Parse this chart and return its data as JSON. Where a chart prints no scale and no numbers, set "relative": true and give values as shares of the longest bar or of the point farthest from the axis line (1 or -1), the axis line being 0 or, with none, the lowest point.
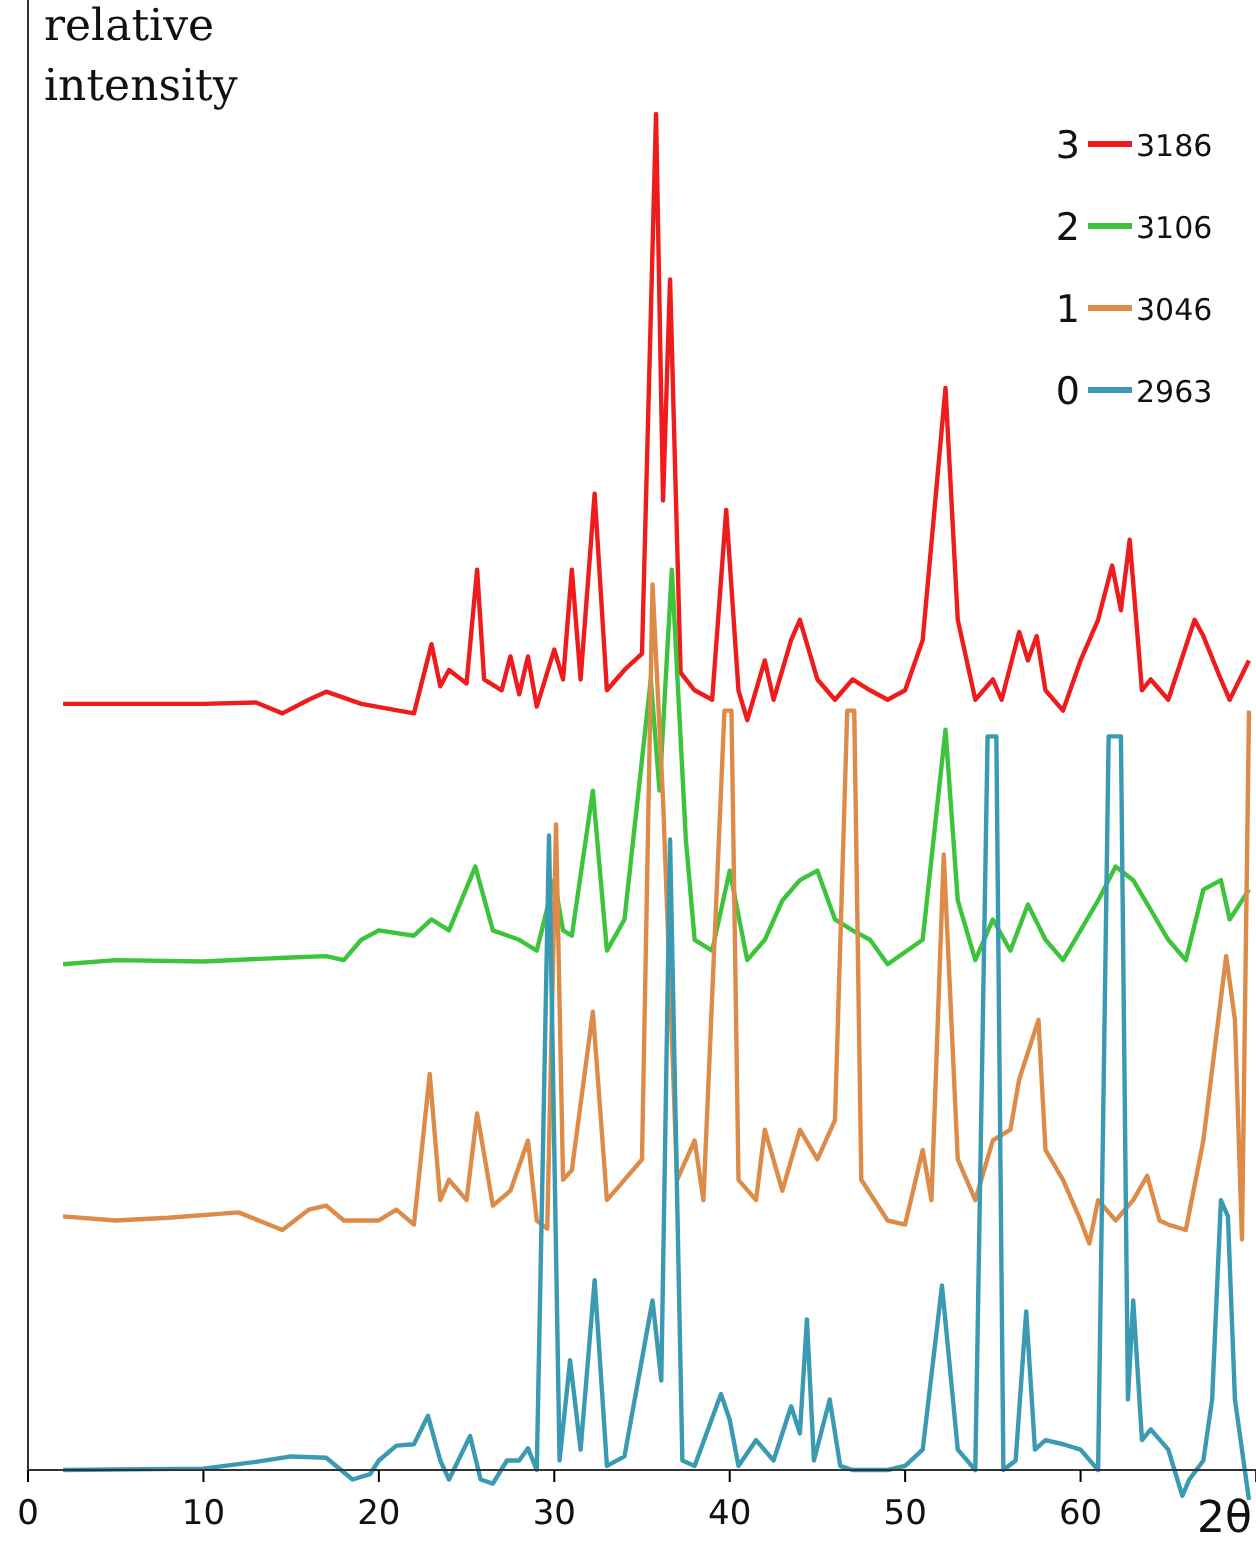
{
  "chart_data": {
    "type": "line",
    "relative": true,
    "ylabel": "relative intensity",
    "xlabel": "2θ",
    "xlim": [
      0,
      70
    ],
    "xticks": [
      0,
      10,
      20,
      30,
      40,
      50,
      60
    ],
    "legend": "top right",
    "annotations": [
      "3",
      "2",
      "1",
      "0"
    ],
    "marker": "none",
    "line_style": "solid",
    "series": [
      {
        "name": "3186",
        "color": "#ee1c1c",
        "x": [
          2,
          10,
          13,
          14.5,
          16,
          17,
          19,
          22,
          23,
          23.5,
          24,
          25,
          25.6,
          26,
          27,
          27.5,
          28,
          28.5,
          29,
          30,
          30.5,
          31,
          31.5,
          32.3,
          33,
          34,
          35,
          35.8,
          36.2,
          36.6,
          37.2,
          38,
          39,
          39.8,
          40.5,
          41,
          42,
          42.5,
          43.5,
          44,
          45,
          46,
          47,
          48,
          49,
          50,
          51,
          52.3,
          53,
          54,
          55,
          55.5,
          56.5,
          57,
          57.5,
          58,
          59,
          60,
          61,
          61.8,
          62.3,
          62.8,
          63.5,
          64,
          65,
          66.5,
          67,
          68,
          68.5,
          69.6
        ],
        "values": [
          0.565,
          0.565,
          0.566,
          0.558,
          0.568,
          0.574,
          0.565,
          0.558,
          0.609,
          0.578,
          0.59,
          0.58,
          0.664,
          0.583,
          0.575,
          0.6,
          0.572,
          0.6,
          0.563,
          0.605,
          0.583,
          0.664,
          0.583,
          0.72,
          0.575,
          0.59,
          0.602,
          1,
          0.715,
          0.878,
          0.588,
          0.575,
          0.568,
          0.708,
          0.575,
          0.553,
          0.597,
          0.568,
          0.612,
          0.627,
          0.583,
          0.568,
          0.583,
          0.575,
          0.568,
          0.575,
          0.612,
          0.798,
          0.627,
          0.568,
          0.583,
          0.568,
          0.618,
          0.597,
          0.615,
          0.575,
          0.56,
          0.597,
          0.627,
          0.667,
          0.634,
          0.686,
          0.575,
          0.583,
          0.568,
          0.627,
          0.615,
          0.583,
          0.568,
          0.597
        ]
      },
      {
        "name": "3106",
        "color": "#3cc43c",
        "x": [
          2,
          5,
          10,
          15,
          17,
          18,
          19,
          20,
          22,
          23,
          24,
          25.5,
          26.5,
          28,
          29,
          30,
          30.5,
          31,
          32.2,
          33,
          34,
          35.5,
          36,
          36.7,
          37.5,
          38,
          39,
          40,
          41,
          42,
          43,
          44,
          45,
          46,
          47,
          48,
          49,
          51,
          52.3,
          53,
          54,
          55,
          56,
          57,
          58,
          59,
          60,
          61,
          62,
          63,
          64,
          65,
          66,
          67,
          68,
          68.5,
          69.6
        ],
        "values": [
          0.373,
          0.376,
          0.375,
          0.378,
          0.379,
          0.376,
          0.391,
          0.398,
          0.394,
          0.406,
          0.398,
          0.445,
          0.398,
          0.391,
          0.383,
          0.435,
          0.398,
          0.394,
          0.501,
          0.383,
          0.406,
          0.583,
          0.501,
          0.664,
          0.465,
          0.391,
          0.383,
          0.442,
          0.376,
          0.391,
          0.42,
          0.435,
          0.442,
          0.406,
          0.398,
          0.391,
          0.373,
          0.391,
          0.546,
          0.42,
          0.376,
          0.406,
          0.383,
          0.417,
          0.391,
          0.376,
          0.398,
          0.42,
          0.445,
          0.435,
          0.413,
          0.391,
          0.376,
          0.428,
          0.435,
          0.406,
          0.428
        ]
      },
      {
        "name": "3046",
        "color": "#dc8c48",
        "x": [
          2,
          5,
          8,
          12,
          14.5,
          16,
          17,
          18,
          20,
          21,
          22,
          22.9,
          23.5,
          24,
          25,
          25.6,
          26.5,
          27.5,
          28.5,
          29,
          29.6,
          30.1,
          30.5,
          31,
          32.2,
          33,
          34,
          35,
          35.6,
          36.2,
          37,
          38,
          38.5,
          39.7,
          40.1,
          40.5,
          41.5,
          42,
          43,
          44,
          45,
          46,
          46.7,
          47.1,
          47.5,
          49,
          50,
          51,
          51.5,
          52.2,
          53,
          54,
          55,
          56,
          56.5,
          57.6,
          58,
          59,
          60,
          60.5,
          61,
          62,
          63,
          63.8,
          64.5,
          65,
          66,
          67,
          68.3,
          68.8,
          69.2,
          69.6
        ],
        "values": [
          0.187,
          0.184,
          0.186,
          0.19,
          0.177,
          0.192,
          0.195,
          0.184,
          0.184,
          0.192,
          0.181,
          0.292,
          0.199,
          0.214,
          0.199,
          0.263,
          0.195,
          0.206,
          0.243,
          0.184,
          0.178,
          0.476,
          0.214,
          0.221,
          0.338,
          0.199,
          0.214,
          0.229,
          0.653,
          0.494,
          0.214,
          0.243,
          0.199,
          0.56,
          0.56,
          0.214,
          0.199,
          0.251,
          0.206,
          0.251,
          0.229,
          0.258,
          0.56,
          0.56,
          0.214,
          0.184,
          0.181,
          0.236,
          0.199,
          0.454,
          0.229,
          0.199,
          0.243,
          0.251,
          0.288,
          0.332,
          0.236,
          0.214,
          0.184,
          0.167,
          0.199,
          0.184,
          0.199,
          0.217,
          0.184,
          0.181,
          0.177,
          0.243,
          0.379,
          0.332,
          0.17,
          0.56
        ]
      },
      {
        "name": "2963",
        "color": "#3a9ab4",
        "x": [
          2,
          10,
          13,
          15,
          17,
          18.5,
          19.5,
          20,
          21,
          22,
          22.8,
          23.5,
          24,
          25.2,
          25.8,
          26.5,
          27.3,
          28,
          28.5,
          29,
          29.7,
          30.3,
          30.9,
          31.5,
          32.3,
          33,
          34,
          35.6,
          36.1,
          36.6,
          37.3,
          38,
          39.5,
          40,
          40.5,
          41.5,
          42.5,
          43.5,
          44,
          44.4,
          44.8,
          45.7,
          46.3,
          47,
          49,
          50,
          51,
          52.1,
          53,
          54,
          54.7,
          55.2,
          55.6,
          56.3,
          56.9,
          57.4,
          58,
          59,
          60,
          61,
          61.6,
          62.3,
          62.7,
          63,
          63.5,
          64,
          65,
          65.8,
          66.2,
          67,
          67.5,
          68,
          68.4,
          68.8,
          69.6
        ],
        "values": [
          0,
          0.001,
          0.006,
          0.01,
          0.009,
          -0.007,
          -0.003,
          0.007,
          0.018,
          0.019,
          0.04,
          0.007,
          -0.007,
          0.025,
          -0.007,
          -0.01,
          0.007,
          0.007,
          0.016,
          0,
          0.468,
          0.007,
          0.081,
          0.015,
          0.14,
          0.003,
          0.01,
          0.125,
          0.066,
          0.465,
          0.007,
          0.003,
          0.056,
          0.037,
          0.003,
          0.022,
          0.007,
          0.047,
          0.027,
          0.111,
          0.007,
          0.052,
          0.003,
          0,
          0,
          0.003,
          0.015,
          0.136,
          0.015,
          0,
          0.541,
          0.541,
          0,
          0.007,
          0.117,
          0.015,
          0.022,
          0.019,
          0.015,
          0,
          0.541,
          0.541,
          0.052,
          0.125,
          0.022,
          0.03,
          0.015,
          -0.019,
          -0.007,
          0.007,
          0.052,
          0.199,
          0.187,
          0.052,
          -0.022
        ]
      }
    ]
  }
}
